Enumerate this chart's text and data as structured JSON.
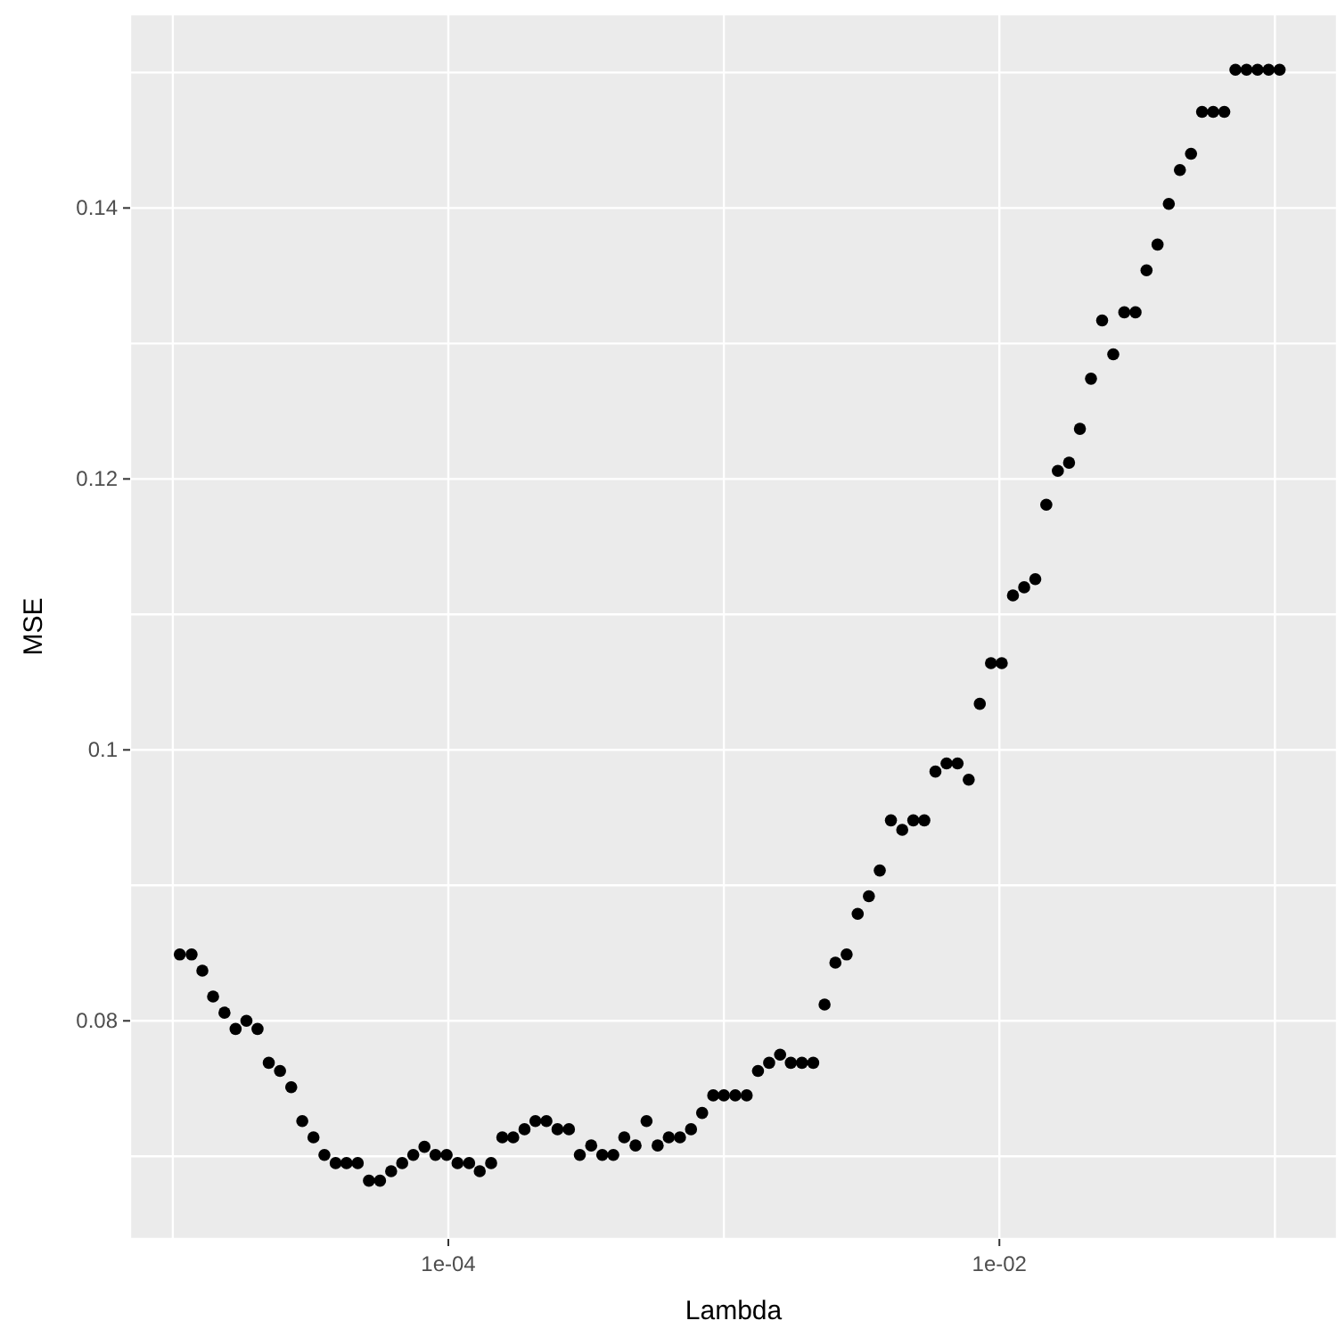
{
  "chart_data": {
    "type": "scatter",
    "xlabel": "Lambda",
    "ylabel": "MSE",
    "log": "x",
    "grid": true,
    "marker": "circle",
    "legend": false,
    "xlim": [
      7e-06,
      0.168
    ],
    "ylim": [
      0.0639,
      0.1543
    ],
    "xticks": [
      {
        "value": 1e-05,
        "label": null
      },
      {
        "value": 0.0001,
        "label": "1e-04"
      },
      {
        "value": 0.001,
        "label": null
      },
      {
        "value": 0.01,
        "label": "1e-02"
      },
      {
        "value": 0.1,
        "label": null
      }
    ],
    "yticks": [
      {
        "value": 0.07,
        "label": null
      },
      0.08,
      {
        "value": 0.09,
        "label": null
      },
      0.1,
      {
        "value": 0.11,
        "label": null
      },
      0.12,
      {
        "value": 0.13,
        "label": null
      },
      0.14,
      {
        "value": 0.15,
        "label": null
      }
    ],
    "x": [
      1.06e-05,
      1.17e-05,
      1.28e-05,
      1.4e-05,
      1.54e-05,
      1.69e-05,
      1.85e-05,
      2.03e-05,
      2.23e-05,
      2.45e-05,
      2.69e-05,
      2.95e-05,
      3.24e-05,
      3.55e-05,
      3.9e-05,
      4.27e-05,
      4.69e-05,
      5.15e-05,
      5.65e-05,
      6.2e-05,
      6.8e-05,
      7.46e-05,
      8.19e-05,
      8.98e-05,
      9.86e-05,
      0.000108,
      0.000119,
      0.00013,
      0.000143,
      0.000157,
      0.000172,
      0.000189,
      0.000207,
      0.000227,
      0.000249,
      0.000274,
      0.0003,
      0.00033,
      0.000362,
      0.000397,
      0.000435,
      0.000478,
      0.000524,
      0.000575,
      0.000631,
      0.000693,
      0.00076,
      0.000834,
      0.000915,
      0.001,
      0.0011,
      0.00121,
      0.00133,
      0.00146,
      0.0016,
      0.00175,
      0.00192,
      0.00211,
      0.00232,
      0.00254,
      0.00279,
      0.00306,
      0.00336,
      0.00368,
      0.00404,
      0.00444,
      0.00487,
      0.00534,
      0.00586,
      0.00643,
      0.00705,
      0.00774,
      0.00849,
      0.00932,
      0.0102,
      0.0112,
      0.0123,
      0.0135,
      0.0148,
      0.0163,
      0.0179,
      0.0196,
      0.0215,
      0.0236,
      0.0259,
      0.0284,
      0.0312,
      0.0342,
      0.0375,
      0.0412,
      0.0452,
      0.0496,
      0.0544,
      0.0597,
      0.0655,
      0.0719,
      0.0789,
      0.0865,
      0.0949,
      0.104
    ],
    "series": [
      {
        "color": "#000000",
        "values": [
          0.0849,
          0.0849,
          0.0837,
          0.0818,
          0.0806,
          0.0794,
          0.08,
          0.0794,
          0.0769,
          0.0763,
          0.0751,
          0.0726,
          0.0714,
          0.0701,
          0.0695,
          0.0695,
          0.0695,
          0.0682,
          0.0682,
          0.0689,
          0.0695,
          0.0701,
          0.0707,
          0.0701,
          0.0701,
          0.0695,
          0.0695,
          0.0689,
          0.0695,
          0.0714,
          0.0714,
          0.072,
          0.0726,
          0.0726,
          0.072,
          0.072,
          0.0701,
          0.0708,
          0.0701,
          0.0701,
          0.0714,
          0.0708,
          0.0726,
          0.0708,
          0.0714,
          0.0714,
          0.072,
          0.0732,
          0.0745,
          0.0745,
          0.0745,
          0.0745,
          0.0763,
          0.0769,
          0.0775,
          0.0769,
          0.0769,
          0.0769,
          0.0812,
          0.0843,
          0.0849,
          0.0879,
          0.0892,
          0.0911,
          0.0948,
          0.0941,
          0.0948,
          0.0948,
          0.0984,
          0.099,
          0.099,
          0.0978,
          0.1034,
          0.1064,
          0.1064,
          0.1114,
          0.112,
          0.1126,
          0.1181,
          0.1206,
          0.1212,
          0.1237,
          0.1274,
          0.1317,
          0.1292,
          0.1323,
          0.1323,
          0.1354,
          0.1373,
          0.1403,
          0.1428,
          0.144,
          0.1471,
          0.1471,
          0.1471,
          0.1502,
          0.1502,
          0.1502,
          0.1502,
          0.1502
        ]
      }
    ]
  }
}
